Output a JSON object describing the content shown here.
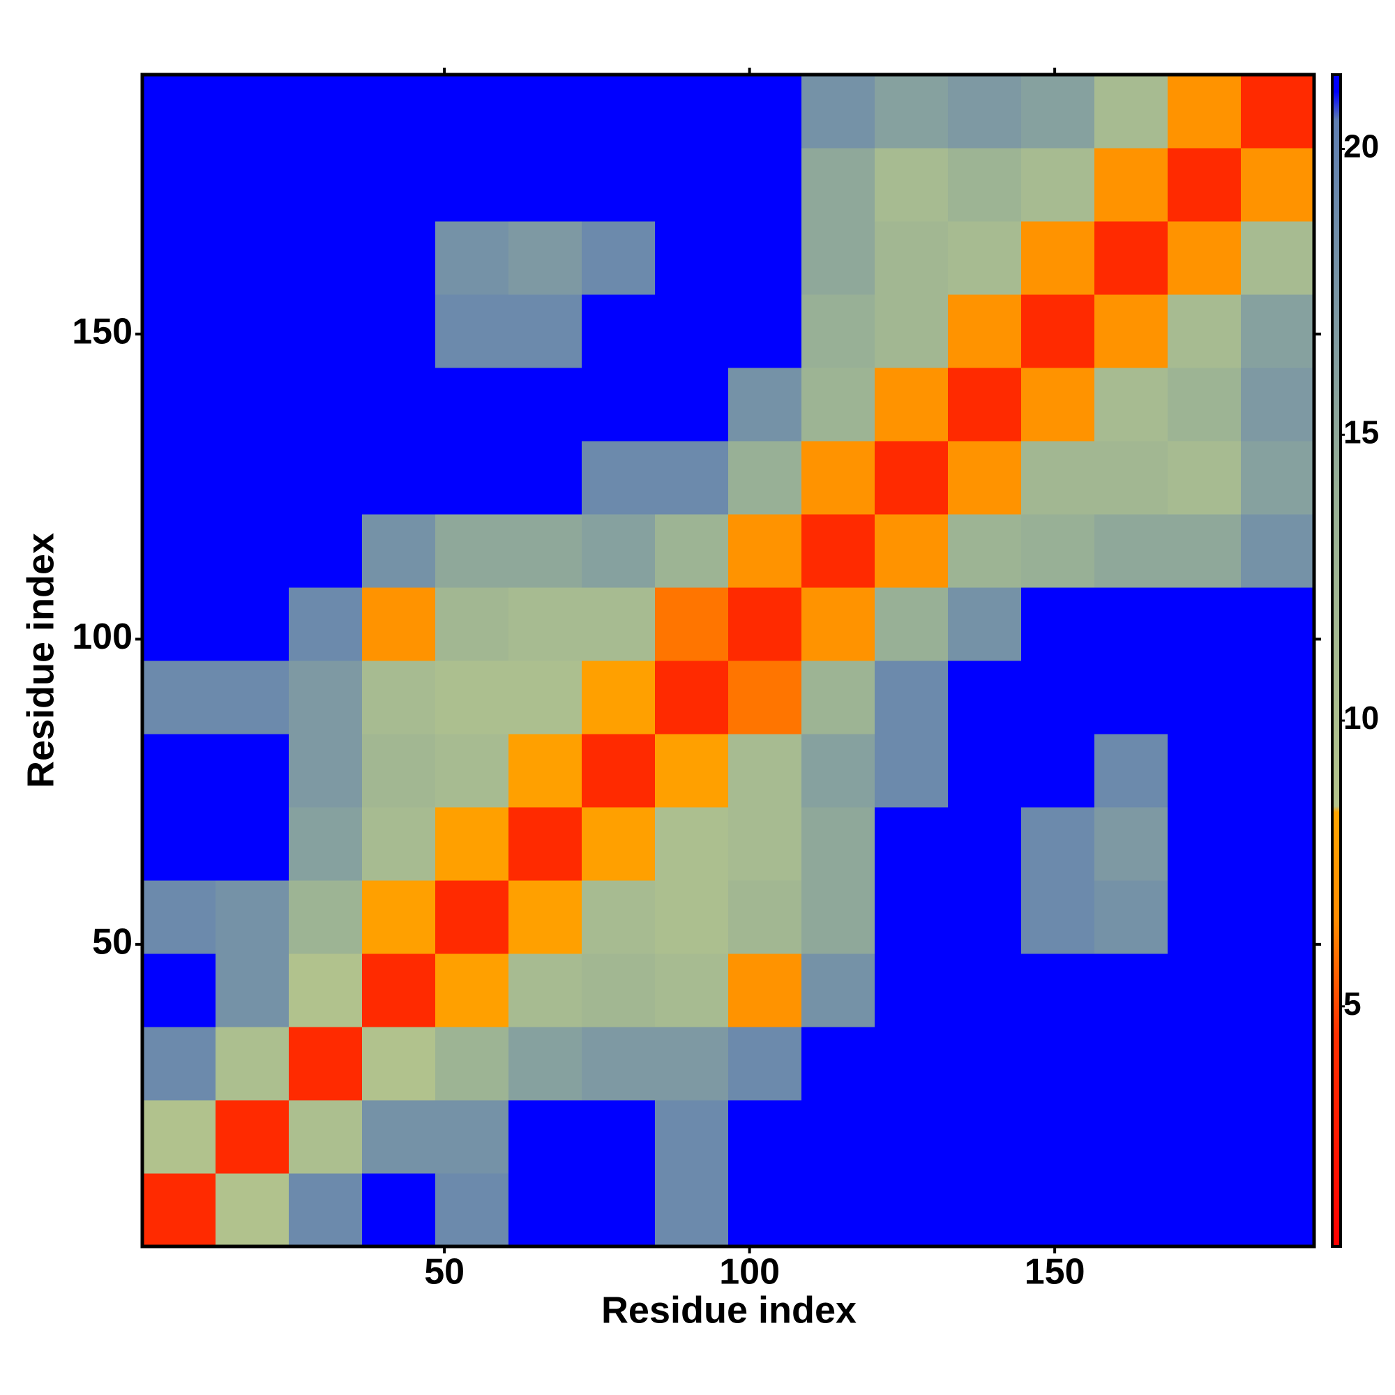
{
  "chart_data": {
    "type": "heatmap",
    "x_label": "Residue index",
    "y_label": "Residue index",
    "xlim": [
      0.5,
      192.5
    ],
    "ylim": [
      0.5,
      192.5
    ],
    "xticks": [
      50,
      100,
      150
    ],
    "yticks": [
      50,
      100,
      150
    ],
    "bins": [
      0.5,
      12.5,
      24.5,
      36.5,
      48.5,
      60.5,
      72.5,
      84.5,
      96.5,
      108.5,
      120.5,
      132.5,
      144.5,
      156.5,
      168.5,
      180.5,
      192.5
    ],
    "z": [
      [
        4,
        9,
        19,
        21,
        19,
        21,
        21,
        19,
        21,
        21,
        21,
        21,
        21,
        21,
        21,
        21
      ],
      [
        9,
        4,
        10,
        18,
        18,
        21,
        21,
        19,
        21,
        21,
        21,
        21,
        21,
        21,
        21,
        21
      ],
      [
        19,
        10,
        4,
        9,
        13,
        16,
        17,
        17,
        19,
        21,
        21,
        21,
        21,
        21,
        21,
        21
      ],
      [
        21,
        18,
        9,
        4,
        8,
        11,
        12,
        11,
        7,
        18,
        21,
        21,
        21,
        21,
        21,
        21
      ],
      [
        19,
        18,
        13,
        8,
        4,
        8,
        11,
        10,
        12,
        15,
        21,
        21,
        19,
        18,
        21,
        21
      ],
      [
        21,
        21,
        16,
        11,
        8,
        4,
        8,
        10,
        11,
        15,
        21,
        21,
        19,
        17,
        21,
        21
      ],
      [
        21,
        21,
        17,
        12,
        11,
        8,
        4,
        8,
        11,
        16,
        19,
        21,
        21,
        19,
        21,
        21
      ],
      [
        19,
        19,
        17,
        11,
        10,
        10,
        8,
        4,
        6,
        13,
        19,
        21,
        21,
        21,
        21,
        21
      ],
      [
        21,
        21,
        19,
        7,
        12,
        11,
        11,
        6,
        4,
        7,
        14,
        18,
        21,
        21,
        21,
        21
      ],
      [
        21,
        21,
        21,
        18,
        15,
        15,
        16,
        13,
        7,
        4,
        7,
        13,
        14,
        15,
        15,
        18
      ],
      [
        21,
        21,
        21,
        21,
        21,
        21,
        19,
        19,
        14,
        7,
        4,
        7,
        12,
        12,
        11,
        16
      ],
      [
        21,
        21,
        21,
        21,
        21,
        21,
        21,
        21,
        18,
        13,
        7,
        4,
        7,
        11,
        13,
        17
      ],
      [
        21,
        21,
        21,
        21,
        19,
        19,
        21,
        21,
        21,
        14,
        12,
        7,
        4,
        7,
        11,
        16
      ],
      [
        21,
        21,
        21,
        21,
        18,
        17,
        19,
        21,
        21,
        15,
        12,
        11,
        7,
        4,
        7,
        11
      ],
      [
        21,
        21,
        21,
        21,
        21,
        21,
        21,
        21,
        21,
        15,
        11,
        13,
        11,
        7,
        4,
        7
      ],
      [
        21,
        21,
        21,
        21,
        21,
        21,
        21,
        21,
        21,
        18,
        16,
        17,
        16,
        11,
        7,
        4
      ]
    ],
    "zlim": [
      0.8,
      21.3
    ],
    "zticks": [
      5,
      10,
      15,
      20
    ],
    "colorscale": [
      {
        "value": 0.8,
        "color": "#ff0000"
      },
      {
        "value": 4.5,
        "color": "#ff3000"
      },
      {
        "value": 6.5,
        "color": "#ff8c00"
      },
      {
        "value": 8.4,
        "color": "#ffa500"
      },
      {
        "value": 8.5,
        "color": "#b4c48c"
      },
      {
        "value": 14,
        "color": "#98b096"
      },
      {
        "value": 20.5,
        "color": "#5f7fb2"
      },
      {
        "value": 21,
        "color": "#0000ff"
      },
      {
        "value": 21.3,
        "color": "#0000ff"
      }
    ]
  }
}
